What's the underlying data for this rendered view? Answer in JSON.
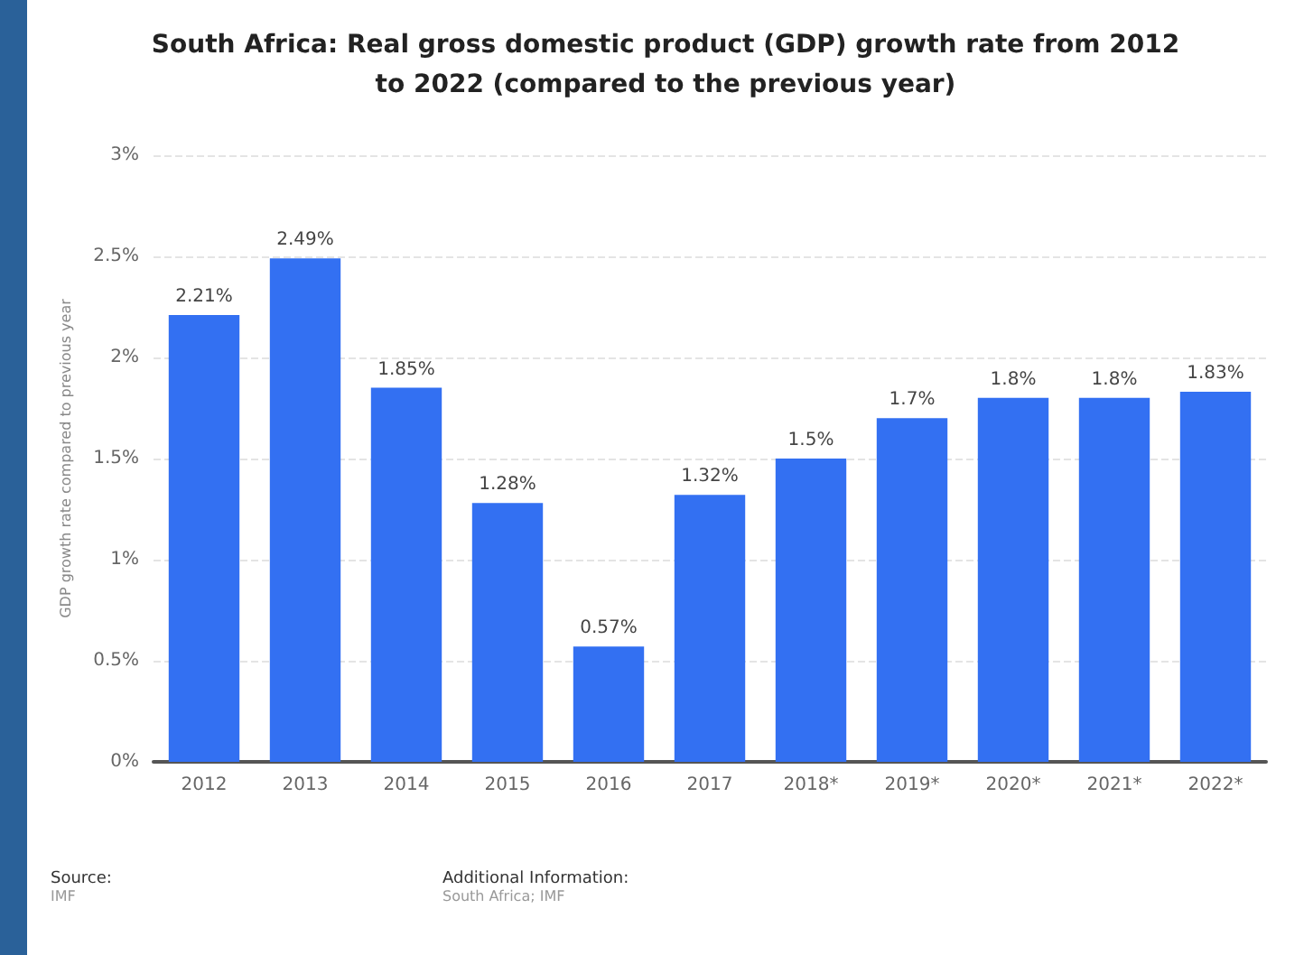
{
  "chart_data": {
    "type": "bar",
    "title": "South Africa: Real gross domestic product (GDP) growth rate from 2012 to 2022 (compared to the previous year)",
    "ylabel": "GDP growth rate compared to previous year",
    "categories": [
      "2012",
      "2013",
      "2014",
      "2015",
      "2016",
      "2017",
      "2018*",
      "2019*",
      "2020*",
      "2021*",
      "2022*"
    ],
    "values": [
      2.21,
      2.49,
      1.85,
      1.28,
      0.57,
      1.32,
      1.5,
      1.7,
      1.8,
      1.8,
      1.83
    ],
    "value_labels": [
      "2.21%",
      "2.49%",
      "1.85%",
      "1.28%",
      "0.57%",
      "1.32%",
      "1.5%",
      "1.7%",
      "1.8%",
      "1.8%",
      "1.83%"
    ],
    "color": "#3370f2",
    "ylim": [
      0,
      3
    ],
    "yticks": [
      {
        "value": 0,
        "label": "0%"
      },
      {
        "value": 0.5,
        "label": "0.5%"
      },
      {
        "value": 1,
        "label": "1%"
      },
      {
        "value": 1.5,
        "label": "1.5%"
      },
      {
        "value": 2,
        "label": "2%"
      },
      {
        "value": 2.5,
        "label": "2.5%"
      },
      {
        "value": 3,
        "label": "3%"
      }
    ],
    "grid": "y",
    "annotations": [
      "Source:",
      "IMF",
      "Additional Information:",
      "South Africa; IMF"
    ]
  }
}
